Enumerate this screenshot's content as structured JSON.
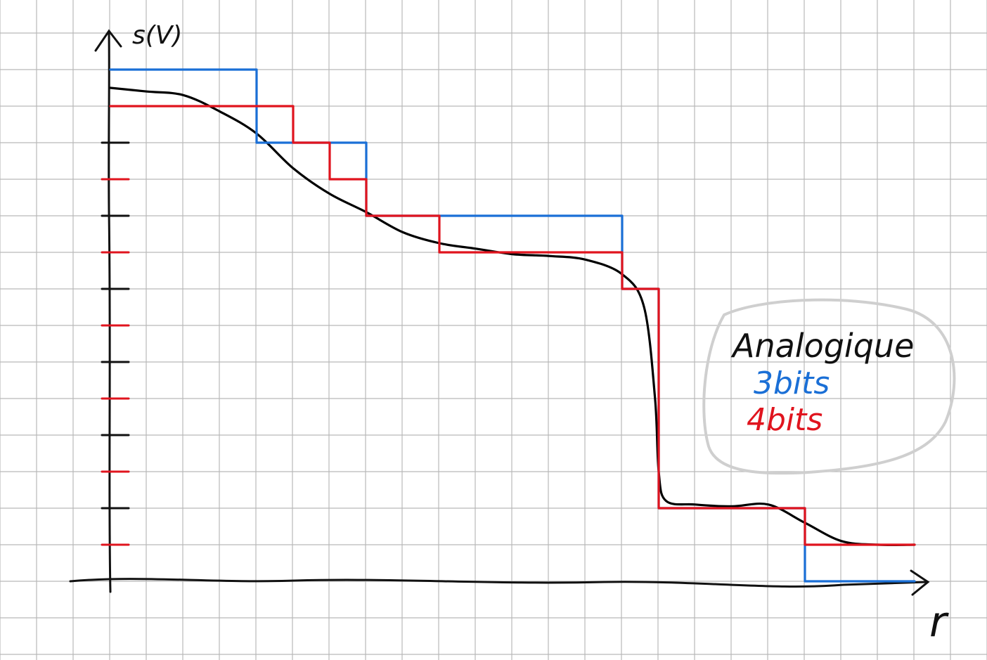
{
  "chart_data": {
    "type": "line",
    "title": "",
    "ylabel": "s(V)",
    "xlabel": "r",
    "xlim": [
      0,
      22
    ],
    "ylim": [
      0,
      14
    ],
    "grid": true,
    "legend_placement": "right",
    "legend_title": "Analogique",
    "y_tick_count": 12,
    "series": [
      {
        "name": "Analogique",
        "color": "#000000",
        "kind": "smooth",
        "points": [
          [
            0,
            13.5
          ],
          [
            1,
            13.4
          ],
          [
            2,
            13.3
          ],
          [
            3,
            12.85
          ],
          [
            4,
            12.25
          ],
          [
            5,
            11.3
          ],
          [
            6,
            10.6
          ],
          [
            7,
            10.1
          ],
          [
            8,
            9.55
          ],
          [
            9,
            9.25
          ],
          [
            10,
            9.1
          ],
          [
            11,
            8.95
          ],
          [
            12,
            8.9
          ],
          [
            13,
            8.8
          ],
          [
            14,
            8.4
          ],
          [
            14.6,
            7.5
          ],
          [
            14.9,
            5
          ],
          [
            15,
            3
          ],
          [
            15.2,
            2.2
          ],
          [
            16,
            2.1
          ],
          [
            17,
            2.05
          ],
          [
            18,
            2.1
          ],
          [
            19,
            1.6
          ],
          [
            20,
            1.1
          ],
          [
            21,
            1.0
          ],
          [
            22,
            1.0
          ]
        ]
      },
      {
        "name": "3bits",
        "color": "#1a6fd6",
        "kind": "step",
        "points": [
          [
            0,
            14
          ],
          [
            4,
            14
          ],
          [
            4,
            12
          ],
          [
            7,
            12
          ],
          [
            7,
            10
          ],
          [
            14,
            10
          ],
          [
            14,
            8
          ],
          [
            15,
            8
          ],
          [
            15,
            2
          ],
          [
            19,
            2
          ],
          [
            19,
            0
          ],
          [
            22,
            0
          ]
        ]
      },
      {
        "name": "4bits",
        "color": "#e0141e",
        "kind": "step",
        "points": [
          [
            0,
            13
          ],
          [
            5,
            13
          ],
          [
            5,
            12
          ],
          [
            6,
            12
          ],
          [
            6,
            11
          ],
          [
            7,
            11
          ],
          [
            7,
            10
          ],
          [
            9,
            10
          ],
          [
            9,
            9
          ],
          [
            14,
            9
          ],
          [
            14,
            8
          ],
          [
            15,
            8
          ],
          [
            15,
            2
          ],
          [
            19,
            2
          ],
          [
            19,
            1
          ],
          [
            22,
            1
          ]
        ]
      }
    ]
  }
}
